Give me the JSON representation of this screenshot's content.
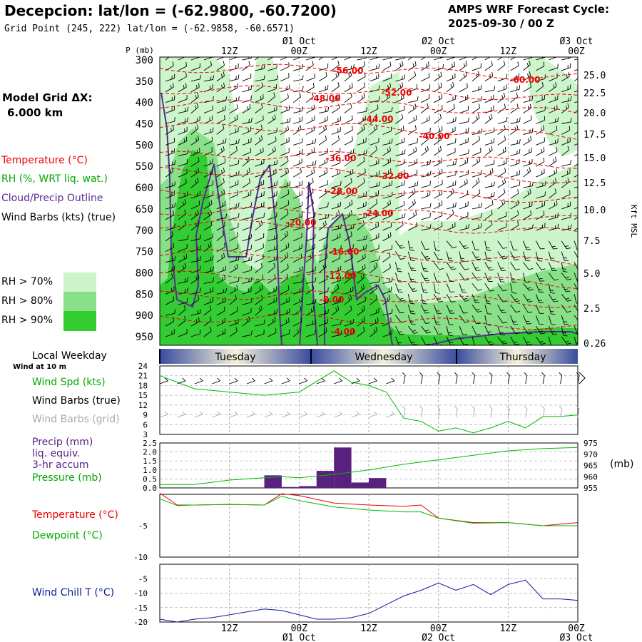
{
  "header": {
    "station_title": "Decepcion:  lat/lon = (-62.9800, -60.7200)",
    "grid_point": "Grid Point (245, 222) lat/lon = (-62.9858, -60.6571)",
    "forecast_line1": "AMPS WRF Forecast Cycle:",
    "forecast_line2": "2025-09-30 / 00  Z"
  },
  "model_grid": {
    "label": "Model Grid ΔX:",
    "value": "6.000 km"
  },
  "time_axis": {
    "ticks": [
      "12Z",
      "00Z",
      "12Z",
      "00Z",
      "12Z",
      "00Z"
    ],
    "dates": [
      "Ø1 Oct",
      "Ø2 Oct",
      "Ø3 Oct"
    ]
  },
  "colors": {
    "temperature": "#ee0000",
    "rh": "#00aa00",
    "cloud_outline": "#5a2a96",
    "barbs": "#000000",
    "barbs_grid": "#aaaaaa",
    "precip": "#5a2080",
    "pressure": "#00bb00",
    "dewpoint": "#00bb00",
    "wind_chill": "#0a1a99",
    "rh70": "#ccf5cc",
    "rh80": "#88e088",
    "rh90": "#33cc33"
  },
  "legend_left": {
    "temperature": "Temperature (°C)",
    "rh": "RH (%, WRT liq. wat.)",
    "cloud": "Cloud/Precip Outline",
    "wind_barbs": "Wind Barbs (kts) (true)",
    "rh70": "RH > 70%",
    "rh80": "RH > 80%",
    "rh90": "RH > 90%",
    "local_weekday": "Local Weekday",
    "wind_at": "Wind at 10 m",
    "wind_spd": "Wind Spd (kts)",
    "wind_barbs_true": "Wind Barbs (true)",
    "wind_barbs_grid": "Wind Barbs (grid)",
    "precip1": "Precip (mm)",
    "precip2": "liq. equiv.",
    "precip3": "3-hr accum",
    "pressure": "Pressure (mb)",
    "temp2": "Temperature (°C)",
    "dewpoint": "Dewpoint (°C)",
    "windchill": "Wind Chill T (°C)"
  },
  "chart_data": [
    {
      "type": "contour",
      "ylabel": "P (mb)",
      "y2label": "Kft MSL",
      "p_ticks": [
        300,
        350,
        400,
        450,
        500,
        550,
        600,
        650,
        700,
        750,
        800,
        850,
        900,
        950
      ],
      "kft_ticks": [
        "25.0",
        "22.5",
        "20.0",
        "17.5",
        "15.0",
        "12.5",
        "10.0",
        "7.5",
        "5.0",
        "2.5",
        "0.26"
      ],
      "temp_labels": [
        "-56.00",
        "-52.00",
        "-60.00",
        "-48.00",
        "-44.00",
        "-40.00",
        "-36.00",
        "-32.00",
        "-28.00",
        "-24.00",
        "-20.00",
        "-16.00",
        "-12.00",
        "-8.00",
        "-4.00"
      ]
    },
    {
      "type": "weekday_bar",
      "days": [
        "Tuesday",
        "Wednesday",
        "Thursday"
      ]
    },
    {
      "type": "line",
      "title": "Wind Spd (kts)",
      "y_ticks": [
        3,
        6,
        9,
        12,
        15,
        18,
        21,
        24
      ],
      "ylim": [
        3,
        24
      ],
      "x_hours": [
        0,
        6,
        12,
        18,
        21,
        24,
        30,
        33,
        36,
        39,
        42,
        45,
        48,
        51,
        54,
        57,
        60,
        63,
        66,
        69,
        72
      ],
      "values": [
        21,
        17,
        16,
        15,
        15.5,
        16,
        22.5,
        19,
        18,
        16,
        8,
        7,
        4,
        5,
        3.5,
        5,
        7,
        5,
        8.5,
        8.5,
        9
      ]
    },
    {
      "type": "bar+line",
      "precip_ticks": [
        "2.5",
        "2.0",
        "1.5",
        "1.0",
        "0.5",
        "0.0"
      ],
      "pressure_ticks": [
        975,
        970,
        965,
        960,
        955
      ],
      "precip_x_hours": [
        15,
        18,
        21,
        24,
        27,
        30,
        33,
        36
      ],
      "precip_values": [
        0.0,
        0.7,
        0.05,
        0.1,
        0.95,
        2.25,
        0.3,
        0.55
      ],
      "pressure_x_hours": [
        0,
        6,
        12,
        18,
        21,
        24,
        30,
        36,
        42,
        48,
        54,
        60,
        66,
        72
      ],
      "pressure_values": [
        956.5,
        956.5,
        958.5,
        959.5,
        960,
        959.5,
        961,
        963,
        965.5,
        967.5,
        969.5,
        971.5,
        972.5,
        973
      ]
    },
    {
      "type": "line",
      "y_ticks": [
        -5,
        -10
      ],
      "ylim": [
        -10,
        0
      ],
      "x_hours": [
        0,
        3,
        6,
        12,
        18,
        21,
        24,
        30,
        36,
        42,
        45,
        48,
        54,
        60,
        66,
        72
      ],
      "temperature": [
        0.2,
        -1.7,
        -1.7,
        -1.6,
        -1.7,
        0.1,
        -0.2,
        -1.4,
        -1.7,
        -1.9,
        -1.7,
        -3.8,
        -4.5,
        -4.5,
        -5.0,
        -4.5
      ],
      "dewpoint": [
        -0.7,
        -1.8,
        -1.7,
        -1.6,
        -1.7,
        -0.3,
        -1.0,
        -2.0,
        -2.5,
        -2.8,
        -2.8,
        -3.8,
        -4.6,
        -4.5,
        -5.0,
        -5.0
      ]
    },
    {
      "type": "line",
      "title": "Wind Chill T (°C)",
      "y_ticks": [
        -5,
        -10,
        -15,
        -20
      ],
      "ylim": [
        -20,
        0
      ],
      "x_hours": [
        0,
        3,
        6,
        9,
        12,
        15,
        18,
        21,
        24,
        27,
        30,
        33,
        36,
        39,
        42,
        45,
        48,
        51,
        54,
        57,
        60,
        63,
        66,
        69,
        72
      ],
      "values": [
        -19,
        -20,
        -19,
        -18.5,
        -17.5,
        -16.5,
        -15.5,
        -16,
        -17.5,
        -19,
        -19,
        -18.5,
        -17,
        -14,
        -11,
        -9,
        -6.5,
        -9,
        -7,
        -10.5,
        -7,
        -5.5,
        -12,
        -12,
        -12.5
      ]
    }
  ]
}
